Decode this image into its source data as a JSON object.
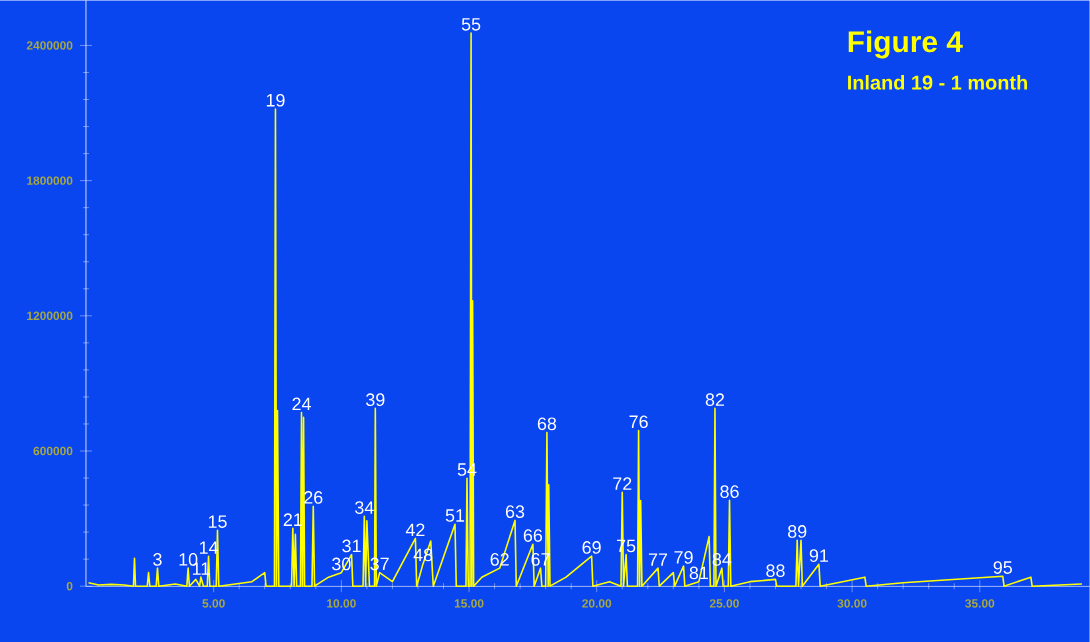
{
  "chart_data": {
    "type": "line",
    "title": "Figure 4",
    "subtitle": "Inland 19 - 1 month",
    "x": [
      0.1,
      0.5,
      1.0,
      1.5,
      1.86,
      1.9,
      1.94,
      2.4,
      2.45,
      2.5,
      2.75,
      2.8,
      2.85,
      3.5,
      3.95,
      4.0,
      4.05,
      4.3,
      4.45,
      4.5,
      4.6,
      4.75,
      4.8,
      4.85,
      5.1,
      5.15,
      5.2,
      6.5,
      7.0,
      7.05,
      7.38,
      7.42,
      7.46,
      7.5,
      7.55,
      8.05,
      8.1,
      8.15,
      8.2,
      8.25,
      8.4,
      8.44,
      8.48,
      8.52,
      8.56,
      8.85,
      8.9,
      8.95,
      9.5,
      10.0,
      10.4,
      10.45,
      10.85,
      10.9,
      10.95,
      11.0,
      11.1,
      11.3,
      11.33,
      11.37,
      11.5,
      12.0,
      12.9,
      12.95,
      13.2,
      13.5,
      13.6,
      14.0,
      14.45,
      14.5,
      14.88,
      14.92,
      14.97,
      15.04,
      15.08,
      15.11,
      15.14,
      15.18,
      15.5,
      16.2,
      16.8,
      16.85,
      17.5,
      17.55,
      17.8,
      17.85,
      18.0,
      18.05,
      18.1,
      18.12,
      18.17,
      18.8,
      19.8,
      19.85,
      20.5,
      20.95,
      21.0,
      21.05,
      21.15,
      21.2,
      21.6,
      21.64,
      21.68,
      21.72,
      21.77,
      22.4,
      22.45,
      23.0,
      23.05,
      23.4,
      23.45,
      24.0,
      24.4,
      24.45,
      24.59,
      24.63,
      24.67,
      24.9,
      24.95,
      25.15,
      25.2,
      25.25,
      26.0,
      27.0,
      27.05,
      27.8,
      27.85,
      27.9,
      28.0,
      28.05,
      28.7,
      28.75,
      30.5,
      30.55,
      32.0,
      35.9,
      35.95,
      37.0,
      37.05,
      39.0
    ],
    "series": [
      {
        "color": "#ffff00",
        "values": [
          15000,
          5000,
          8000,
          5000,
          0,
          124000,
          0,
          0,
          60000,
          0,
          0,
          80000,
          0,
          10000,
          0,
          80000,
          0,
          30000,
          0,
          40000,
          0,
          0,
          133000,
          0,
          0,
          248000,
          0,
          20000,
          60000,
          0,
          0,
          2118000,
          0,
          780000,
          0,
          0,
          257000,
          0,
          230000,
          0,
          0,
          771000,
          0,
          750000,
          0,
          0,
          355000,
          0,
          40000,
          60000,
          140000,
          0,
          0,
          310000,
          0,
          290000,
          0,
          0,
          789000,
          0,
          60000,
          20000,
          212000,
          0,
          100000,
          200000,
          0,
          130000,
          275000,
          0,
          0,
          479000,
          0,
          0,
          2455000,
          0,
          1267000,
          0,
          40000,
          80000,
          292000,
          0,
          186000,
          0,
          80000,
          0,
          0,
          682000,
          0,
          450000,
          0,
          40000,
          133000,
          0,
          20000,
          0,
          417000,
          0,
          140000,
          0,
          0,
          691000,
          0,
          380000,
          0,
          80000,
          0,
          60000,
          0,
          89000,
          0,
          20000,
          220000,
          0,
          0,
          789000,
          0,
          80000,
          0,
          0,
          381000,
          0,
          20000,
          30000,
          0,
          0,
          204000,
          0,
          204000,
          0,
          97000,
          0,
          40000,
          0,
          15000,
          44000,
          0,
          40000,
          0,
          10000
        ]
      }
    ],
    "xlim": [
      0,
      39.3
    ],
    "ylim": [
      0,
      2600000
    ],
    "xticks": [
      {
        "value": 5,
        "label": "5.00"
      },
      {
        "value": 10,
        "label": "10.00"
      },
      {
        "value": 15,
        "label": "15.00"
      },
      {
        "value": 20,
        "label": "20.00"
      },
      {
        "value": 25,
        "label": "25.00"
      },
      {
        "value": 30,
        "label": "30.00"
      },
      {
        "value": 35,
        "label": "35.00"
      }
    ],
    "yticks": [
      0,
      600000,
      1200000,
      1800000,
      2400000
    ],
    "annotations": [
      {
        "text": "3",
        "x": 2.8,
        "y": 80000
      },
      {
        "text": "10",
        "x": 4.0,
        "y": 80000
      },
      {
        "text": "11",
        "x": 4.5,
        "y": 40000
      },
      {
        "text": "14",
        "x": 4.8,
        "y": 133000
      },
      {
        "text": "15",
        "x": 5.15,
        "y": 248000
      },
      {
        "text": "19",
        "x": 7.42,
        "y": 2118000
      },
      {
        "text": "21",
        "x": 8.1,
        "y": 257000
      },
      {
        "text": "24",
        "x": 8.44,
        "y": 771000
      },
      {
        "text": "26",
        "x": 8.9,
        "y": 355000
      },
      {
        "text": "30",
        "x": 10.0,
        "y": 60000
      },
      {
        "text": "31",
        "x": 10.4,
        "y": 140000
      },
      {
        "text": "34",
        "x": 10.9,
        "y": 310000
      },
      {
        "text": "37",
        "x": 11.5,
        "y": 60000
      },
      {
        "text": "39",
        "x": 11.33,
        "y": 789000
      },
      {
        "text": "42",
        "x": 12.9,
        "y": 212000
      },
      {
        "text": "48",
        "x": 13.2,
        "y": 100000
      },
      {
        "text": "51",
        "x": 14.45,
        "y": 275000
      },
      {
        "text": "54",
        "x": 14.92,
        "y": 479000
      },
      {
        "text": "55",
        "x": 15.08,
        "y": 2455000
      },
      {
        "text": "62",
        "x": 16.2,
        "y": 80000
      },
      {
        "text": "63",
        "x": 16.8,
        "y": 292000
      },
      {
        "text": "66",
        "x": 17.5,
        "y": 186000
      },
      {
        "text": "67",
        "x": 17.8,
        "y": 80000
      },
      {
        "text": "68",
        "x": 18.05,
        "y": 682000
      },
      {
        "text": "69",
        "x": 19.8,
        "y": 133000
      },
      {
        "text": "72",
        "x": 21.0,
        "y": 417000
      },
      {
        "text": "75",
        "x": 21.15,
        "y": 140000
      },
      {
        "text": "76",
        "x": 21.64,
        "y": 691000
      },
      {
        "text": "77",
        "x": 22.4,
        "y": 80000
      },
      {
        "text": "79",
        "x": 23.4,
        "y": 89000
      },
      {
        "text": "81",
        "x": 24.0,
        "y": 20000
      },
      {
        "text": "82",
        "x": 24.63,
        "y": 789000
      },
      {
        "text": "84",
        "x": 24.9,
        "y": 80000
      },
      {
        "text": "86",
        "x": 25.2,
        "y": 381000
      },
      {
        "text": "88",
        "x": 27.0,
        "y": 30000
      },
      {
        "text": "89",
        "x": 27.85,
        "y": 204000
      },
      {
        "text": "91",
        "x": 28.7,
        "y": 97000
      },
      {
        "text": "95",
        "x": 35.9,
        "y": 44000
      }
    ]
  }
}
